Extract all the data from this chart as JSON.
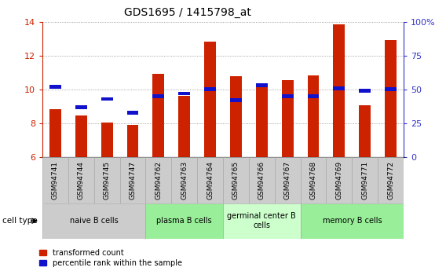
{
  "title": "GDS1695 / 1415798_at",
  "samples": [
    "GSM94741",
    "GSM94744",
    "GSM94745",
    "GSM94747",
    "GSM94762",
    "GSM94763",
    "GSM94764",
    "GSM94765",
    "GSM94766",
    "GSM94767",
    "GSM94768",
    "GSM94769",
    "GSM94771",
    "GSM94772"
  ],
  "transformed_count": [
    8.85,
    8.45,
    8.05,
    7.9,
    10.9,
    9.6,
    12.8,
    10.8,
    10.15,
    10.55,
    10.85,
    13.85,
    9.05,
    12.9
  ],
  "percentile_rank": [
    52,
    37,
    43,
    33,
    45,
    47,
    50,
    42,
    53,
    45,
    45,
    51,
    49,
    50
  ],
  "ylim_left": [
    6,
    14
  ],
  "ylim_right": [
    0,
    100
  ],
  "yticks_left": [
    6,
    8,
    10,
    12,
    14
  ],
  "yticks_right": [
    0,
    25,
    50,
    75,
    100
  ],
  "bar_color": "#cc2200",
  "percentile_color": "#1111cc",
  "bar_width": 0.45,
  "cell_types": [
    {
      "label": "naive B cells",
      "start": 0,
      "end": 4,
      "color": "#cccccc"
    },
    {
      "label": "plasma B cells",
      "start": 4,
      "end": 7,
      "color": "#99ee99"
    },
    {
      "label": "germinal center B\ncells",
      "start": 7,
      "end": 10,
      "color": "#ccffcc"
    },
    {
      "label": "memory B cells",
      "start": 10,
      "end": 14,
      "color": "#99ee99"
    }
  ],
  "legend_items": [
    {
      "label": "transformed count",
      "color": "#cc2200"
    },
    {
      "label": "percentile rank within the sample",
      "color": "#1111cc"
    }
  ],
  "cell_type_label": "cell type",
  "tick_color_left": "#cc2200",
  "tick_color_right": "#3333cc",
  "grid_color": "#888888"
}
